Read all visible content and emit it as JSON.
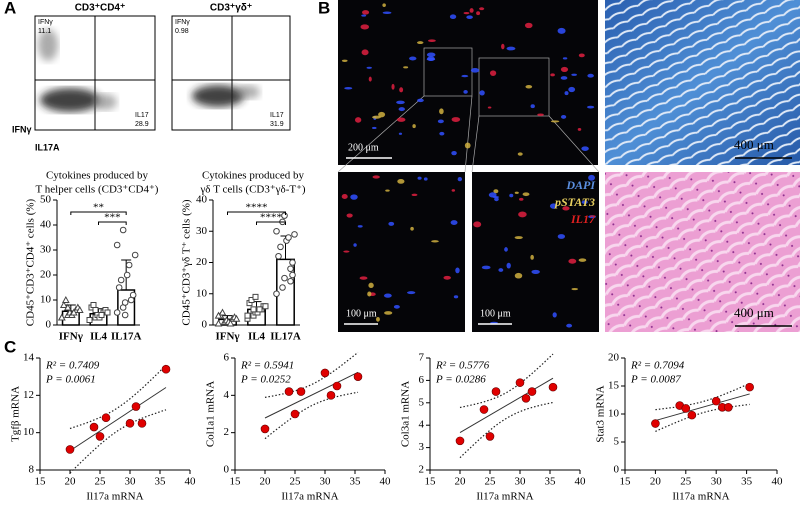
{
  "panel_a": {
    "label": "A",
    "y_axis": "IFNγ",
    "x_axis": "IL17A",
    "plots": [
      {
        "title": "CD3⁺CD4⁺",
        "ifng_label": "IFNγ",
        "ifng_value": 11.1,
        "il17_label": "IL17",
        "il17_value": 28.9
      },
      {
        "title": "CD3⁺γδ⁺",
        "ifng_label": "IFNγ",
        "ifng_value": 0.98,
        "il17_label": "IL17",
        "il17_value": 31.9
      }
    ]
  },
  "panel_b": {
    "label": "B",
    "scale_bars": [
      "200 μm",
      "400 μm",
      "100 μm",
      "100 μm",
      "400 μm"
    ],
    "stains": [
      "DAPI",
      "pSTAT3",
      "IL17"
    ]
  },
  "panel_c": {
    "label": "C"
  },
  "chart_data": [
    {
      "type": "bar",
      "title_lines": [
        "Cytokines produced by",
        "T helper cells (CD3⁺CD4⁺)"
      ],
      "y_label": "CD45⁺CD3⁺CD4⁺ cells (%)",
      "categories": [
        "IFNγ",
        "IL4",
        "IL17A"
      ],
      "values": [
        5.5,
        4.5,
        14
      ],
      "error": [
        2.5,
        2,
        12
      ],
      "points": [
        [
          3,
          4,
          5,
          6,
          7,
          8,
          10,
          4,
          5,
          6,
          3,
          7
        ],
        [
          2,
          3,
          4,
          5,
          6,
          7,
          8,
          3,
          4,
          5,
          2,
          6
        ],
        [
          5,
          7,
          9,
          10,
          12,
          15,
          18,
          20,
          24,
          28,
          32,
          38,
          4
        ]
      ],
      "significance": [
        "**",
        "***"
      ],
      "ylim": [
        0,
        50
      ],
      "yticks": [
        0,
        10,
        20,
        30,
        40,
        50
      ]
    },
    {
      "type": "bar",
      "title_lines": [
        "Cytokines produced by",
        "γδ T cells (CD3⁺γδ-T⁺)"
      ],
      "y_label": "CD45⁺CD3⁺γδ T⁺ cells (%)",
      "categories": [
        "IFNγ",
        "IL4",
        "IL17A"
      ],
      "values": [
        1.8,
        5,
        21
      ],
      "error": [
        1.2,
        2.5,
        7.5
      ],
      "points": [
        [
          0.5,
          1,
          1.5,
          2,
          2.5,
          3,
          4,
          1,
          0.5,
          2,
          3
        ],
        [
          2,
          3,
          4,
          5,
          6,
          7,
          8,
          4,
          5,
          6,
          3,
          5,
          9
        ],
        [
          10,
          12,
          15,
          18,
          20,
          22,
          25,
          27,
          28,
          29,
          30,
          33,
          35,
          14,
          16
        ]
      ],
      "significance": [
        "****",
        "****"
      ],
      "ylim": [
        0,
        40
      ],
      "yticks": [
        0,
        10,
        20,
        30,
        40
      ]
    },
    {
      "type": "scatter",
      "y_label": "Tgfβ mRNA",
      "x_label": "Il17a mRNA",
      "r2_label": "R² = 0.7409",
      "p_label": "P = 0.0061",
      "color": "#e00000",
      "x": [
        20,
        24,
        25,
        26,
        30,
        31,
        32,
        36
      ],
      "values": [
        9.1,
        10.3,
        9.8,
        10.8,
        10.5,
        11.4,
        10.5,
        13.4
      ],
      "xlim": [
        15,
        40
      ],
      "xticks": [
        15,
        20,
        25,
        30,
        35,
        40
      ],
      "ylim": [
        8,
        14
      ],
      "yticks": [
        8,
        10,
        12,
        14
      ]
    },
    {
      "type": "scatter",
      "y_label": "Col1a1 mRNA",
      "x_label": "Il17a mRNA",
      "r2_label": "R² = 0.5941",
      "p_label": "P = 0.0252",
      "color": "#e00000",
      "x": [
        20,
        24,
        25,
        26,
        30,
        31,
        32,
        35.5
      ],
      "values": [
        2.2,
        4.2,
        3.0,
        4.2,
        5.2,
        4.0,
        4.5,
        5.0
      ],
      "xlim": [
        15,
        40
      ],
      "xticks": [
        15,
        20,
        25,
        30,
        35,
        40
      ],
      "ylim": [
        0,
        6
      ],
      "yticks": [
        0,
        2,
        4,
        6
      ]
    },
    {
      "type": "scatter",
      "y_label": "Col3a1 mRNA",
      "x_label": "Il17a mRNA",
      "r2_label": "R² = 0.5776",
      "p_label": "P = 0.0286",
      "color": "#e00000",
      "x": [
        20,
        24,
        25,
        26,
        30,
        31,
        32,
        35.5
      ],
      "values": [
        3.3,
        4.7,
        3.5,
        5.5,
        5.9,
        5.2,
        5.5,
        5.7
      ],
      "xlim": [
        15,
        40
      ],
      "xticks": [
        15,
        20,
        25,
        30,
        35,
        40
      ],
      "ylim": [
        2,
        7
      ],
      "yticks": [
        2,
        3,
        4,
        5,
        6,
        7
      ]
    },
    {
      "type": "scatter",
      "y_label": "Stat3 mRNA",
      "x_label": "Il17a mRNA",
      "r2_label": "R² = 0.7094",
      "p_label": "P = 0.0087",
      "color": "#e00000",
      "x": [
        20,
        24,
        25,
        26,
        30,
        31,
        32,
        35.5
      ],
      "values": [
        8.3,
        11.5,
        11.0,
        9.8,
        12.3,
        11.2,
        11.2,
        14.8
      ],
      "xlim": [
        15,
        40
      ],
      "xticks": [
        15,
        20,
        25,
        30,
        35,
        40
      ],
      "ylim": [
        0,
        20
      ],
      "yticks": [
        0,
        5,
        10,
        15,
        20
      ]
    }
  ]
}
